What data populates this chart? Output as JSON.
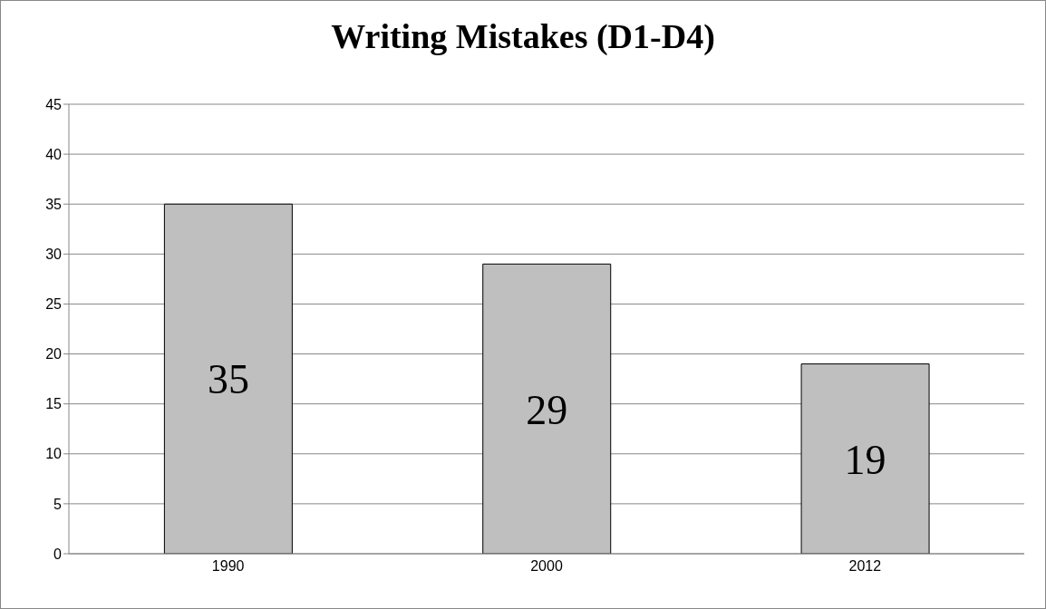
{
  "chart_data": {
    "type": "bar",
    "title": "Writing Mistakes (D1-D4)",
    "categories": [
      "1990",
      "2000",
      "2012"
    ],
    "values": [
      35,
      29,
      19
    ],
    "color": "#bfbfbf",
    "ylim": [
      0,
      45
    ],
    "yticks": [
      0,
      5,
      10,
      15,
      20,
      25,
      30,
      35,
      40,
      45
    ],
    "grid": "y",
    "data_labels": true
  }
}
